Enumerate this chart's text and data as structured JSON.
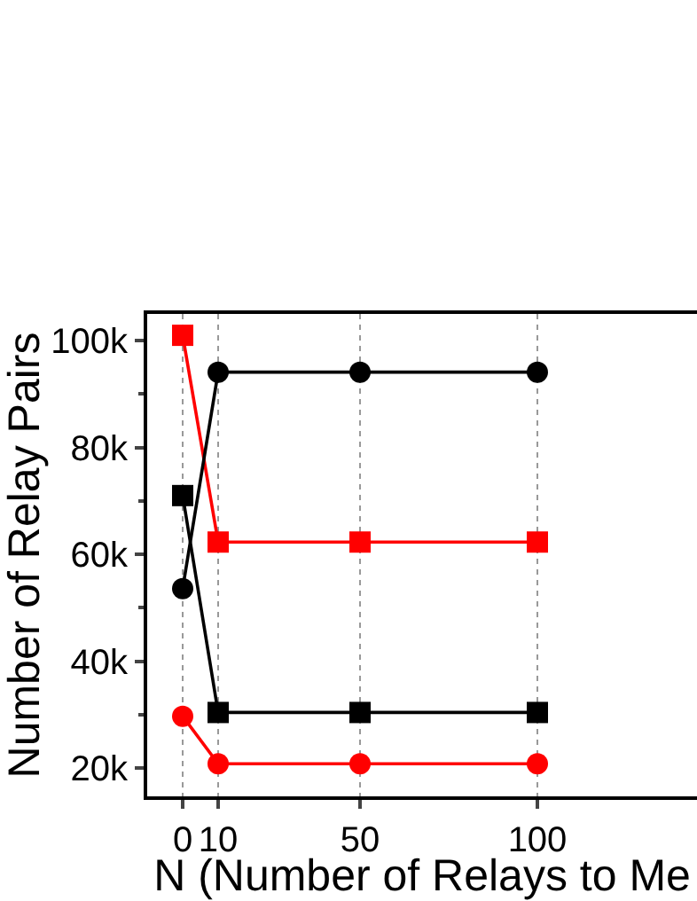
{
  "chart_data": {
    "type": "line",
    "xlabel": "N (Number of Relays to Me",
    "ylabel": "Number of Relay Pairs",
    "x": [
      0,
      10,
      50,
      100
    ],
    "series": [
      {
        "color": "#ff0000",
        "marker": "square",
        "values": [
          101000,
          62300,
          62300,
          62300
        ]
      },
      {
        "color": "#000000",
        "marker": "circle",
        "values": [
          53600,
          94100,
          94100,
          94100
        ]
      },
      {
        "color": "#000000",
        "marker": "square",
        "values": [
          71000,
          30400,
          30400,
          30400
        ]
      },
      {
        "color": "#ff0000",
        "marker": "circle",
        "values": [
          29700,
          20800,
          20800,
          20800
        ]
      }
    ],
    "xlim": [
      -10,
      145
    ],
    "xticks": [
      0,
      10,
      50,
      100
    ],
    "ylim": [
      14700,
      105000
    ],
    "yticks": [
      {
        "value": 20000,
        "label": "20k"
      },
      {
        "value": 40000,
        "label": "40k"
      },
      {
        "value": 60000,
        "label": "60k"
      },
      {
        "value": 80000,
        "label": "80k"
      },
      {
        "value": 100000,
        "label": "100k"
      }
    ],
    "grid": "x"
  }
}
